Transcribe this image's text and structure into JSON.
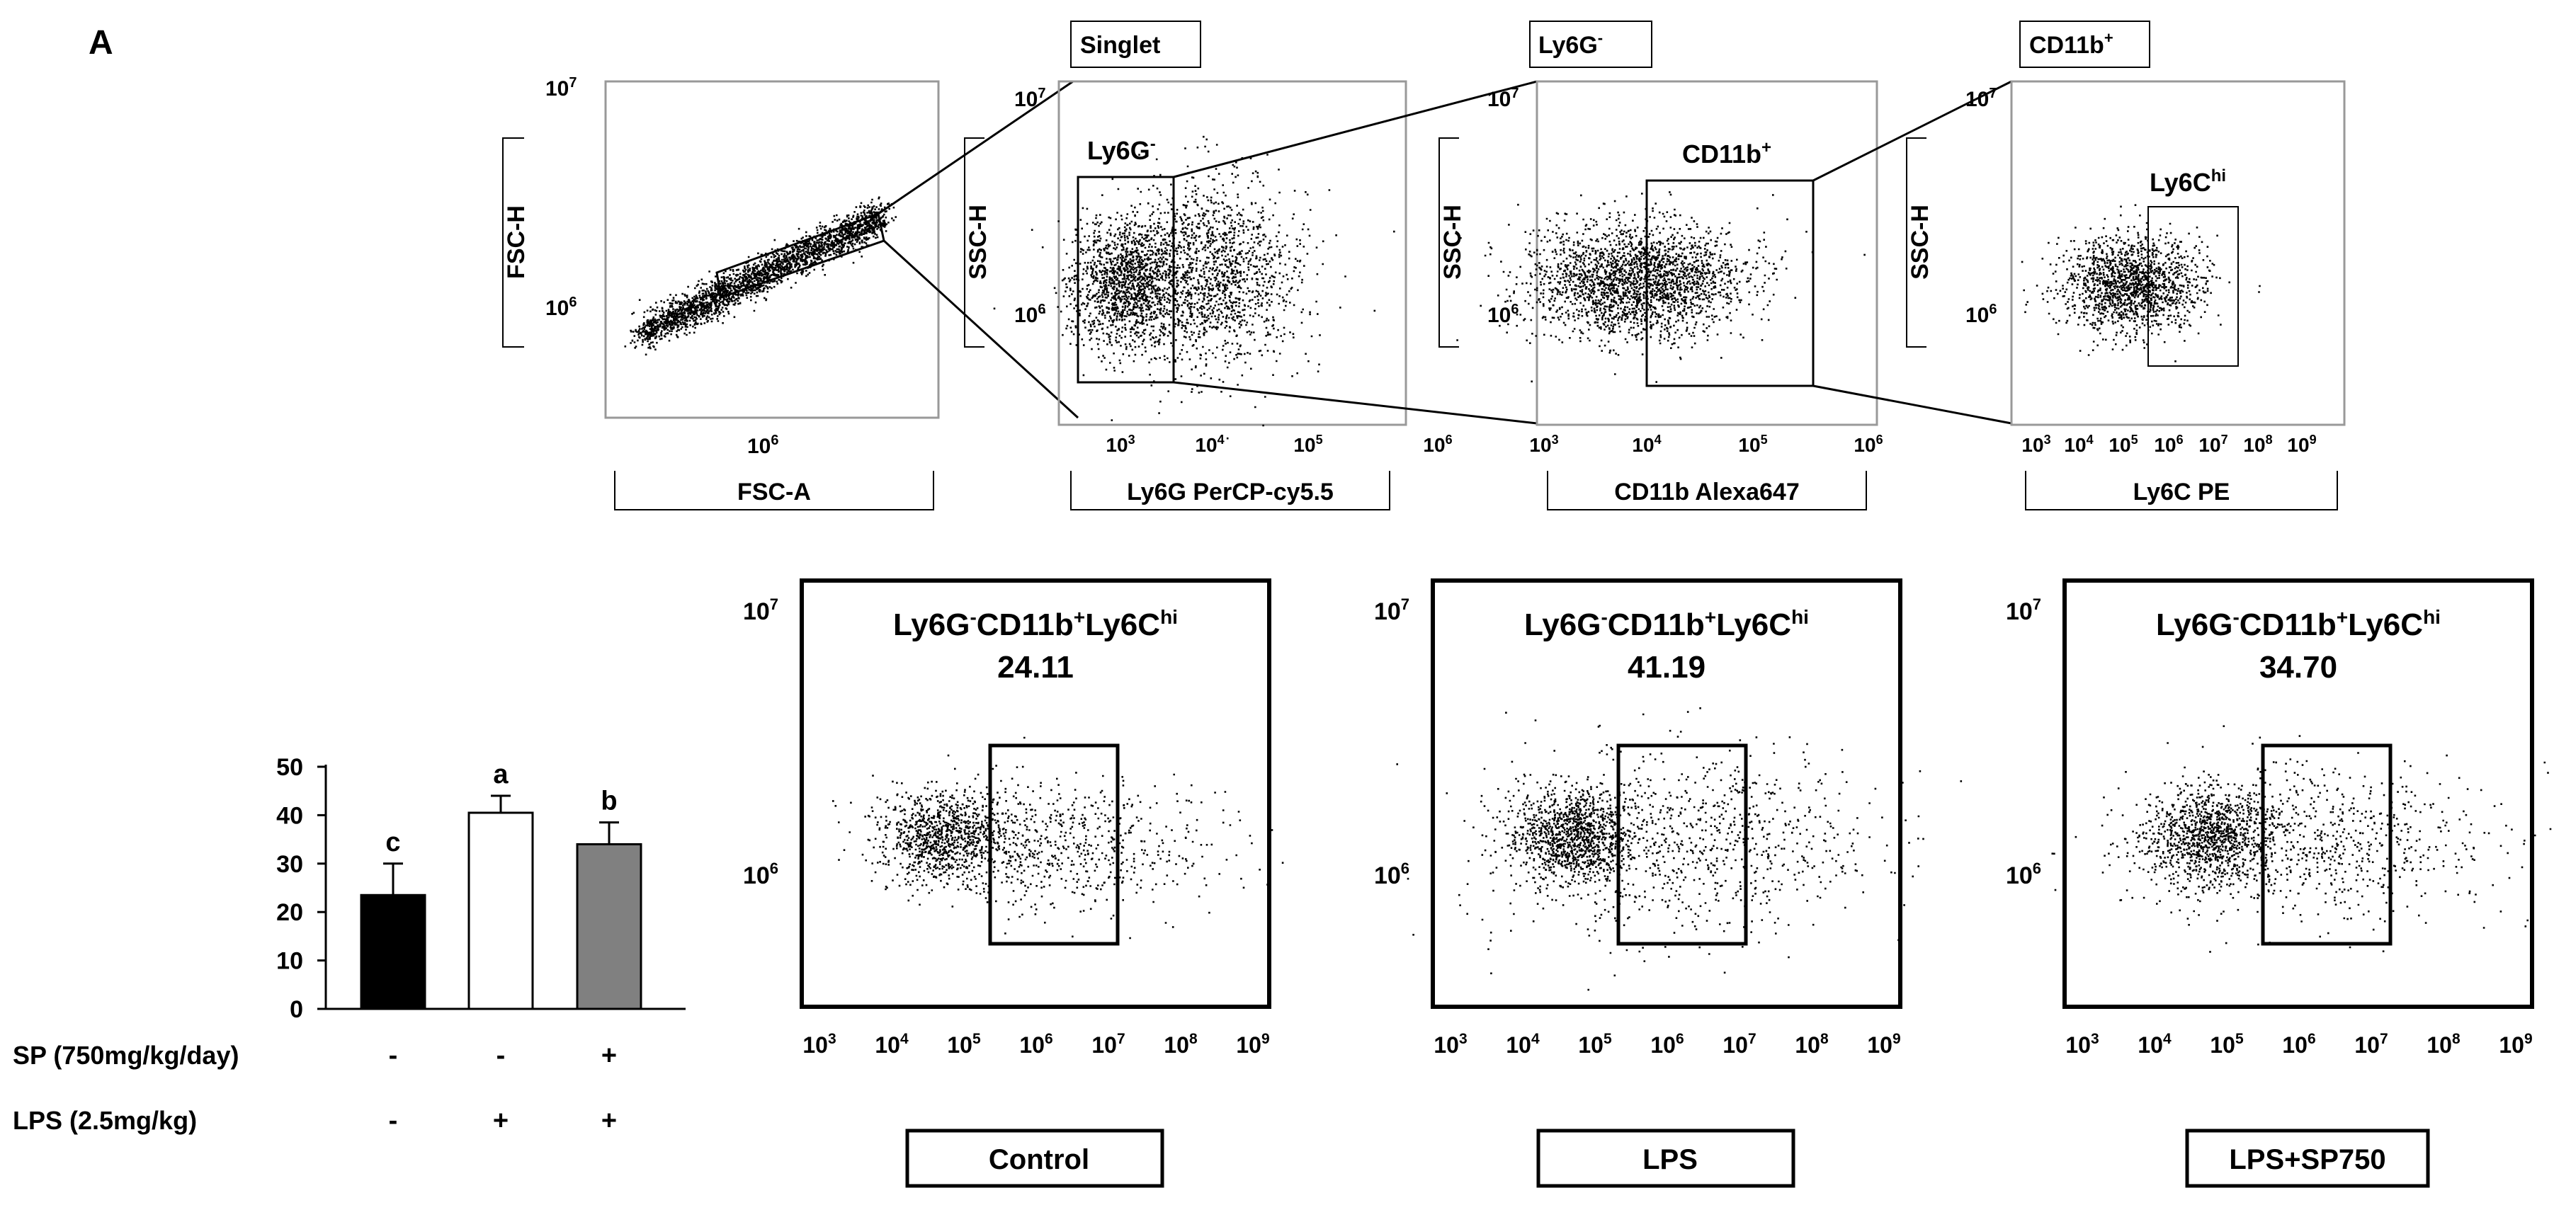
{
  "panel_letter": "A",
  "top_row": {
    "plot1": {
      "ylabel": "FSC-H",
      "xlabel": "FSC-A",
      "y_ticks": [
        {
          "b": "10",
          "e": "7"
        },
        {
          "b": "10",
          "e": "6"
        }
      ],
      "x_ticks": [
        {
          "b": "10",
          "e": "6"
        }
      ]
    },
    "plot2": {
      "header": "Singlet",
      "ylabel": "SSC-H",
      "xlabel": "Ly6G  PerCP-cy5.5",
      "gate": {
        "b": "Ly6G",
        "s": "-"
      },
      "y_ticks": [
        {
          "b": "10",
          "e": "7"
        },
        {
          "b": "10",
          "e": "6"
        }
      ],
      "x_ticks": [
        {
          "b": "10",
          "e": "3"
        },
        {
          "b": "10",
          "e": "4"
        },
        {
          "b": "10",
          "e": "5"
        },
        {
          "b": "10",
          "e": "6"
        }
      ]
    },
    "plot3": {
      "header": {
        "b": "Ly6G",
        "s": "-"
      },
      "ylabel": "SSC-H",
      "xlabel": "CD11b  Alexa647",
      "gate": {
        "b": "CD11b",
        "s": "+"
      },
      "y_ticks": [
        {
          "b": "10",
          "e": "7"
        },
        {
          "b": "10",
          "e": "6"
        }
      ],
      "x_ticks": [
        {
          "b": "10",
          "e": "3"
        },
        {
          "b": "10",
          "e": "4"
        },
        {
          "b": "10",
          "e": "5"
        },
        {
          "b": "10",
          "e": "6"
        }
      ]
    },
    "plot4": {
      "header": {
        "b": "CD11b",
        "s": "+"
      },
      "ylabel": "SSC-H",
      "xlabel": "Ly6C  PE",
      "gate": {
        "b": "Ly6C",
        "s": "hi"
      },
      "y_ticks": [
        {
          "b": "10",
          "e": "7"
        },
        {
          "b": "10",
          "e": "6"
        }
      ],
      "x_ticks": [
        {
          "b": "10",
          "e": "3"
        },
        {
          "b": "10",
          "e": "4"
        },
        {
          "b": "10",
          "e": "5"
        },
        {
          "b": "10",
          "e": "6"
        },
        {
          "b": "10",
          "e": "7"
        },
        {
          "b": "10",
          "e": "8"
        },
        {
          "b": "10",
          "e": "9"
        }
      ]
    }
  },
  "bottom_row": {
    "gate_title": {
      "p1": "Ly6G",
      "s1": "-",
      "p2": "CD11b",
      "s2": "+",
      "p3": "Ly6C",
      "s3": "hi"
    },
    "y_ticks": [
      {
        "b": "10",
        "e": "7"
      },
      {
        "b": "10",
        "e": "6"
      }
    ],
    "x_ticks": [
      {
        "b": "10",
        "e": "3"
      },
      {
        "b": "10",
        "e": "4"
      },
      {
        "b": "10",
        "e": "5"
      },
      {
        "b": "10",
        "e": "6"
      },
      {
        "b": "10",
        "e": "7"
      },
      {
        "b": "10",
        "e": "8"
      },
      {
        "b": "10",
        "e": "9"
      }
    ],
    "panels": [
      {
        "value": "24.11",
        "label": "Control"
      },
      {
        "value": "41.19",
        "label": "LPS"
      },
      {
        "value": "34.70",
        "label": "LPS+SP750"
      }
    ]
  },
  "chart_data": {
    "type": "bar",
    "categories": [
      "Control",
      "LPS",
      "LPS+SP750"
    ],
    "values": [
      23.5,
      40.5,
      34
    ],
    "errors": [
      6.5,
      3.5,
      4.5
    ],
    "letters": [
      "c",
      "a",
      "b"
    ],
    "colors": [
      "#000000",
      "#ffffff",
      "#808080"
    ],
    "ylim": [
      0,
      50
    ],
    "yticks": [
      0,
      10,
      20,
      30,
      40,
      50
    ],
    "treatment_rows": [
      {
        "label": "SP (750mg/kg/day)",
        "signs": [
          "-",
          "-",
          "+"
        ]
      },
      {
        "label": "LPS (2.5mg/kg)",
        "signs": [
          "-",
          "+",
          "+"
        ]
      }
    ]
  }
}
